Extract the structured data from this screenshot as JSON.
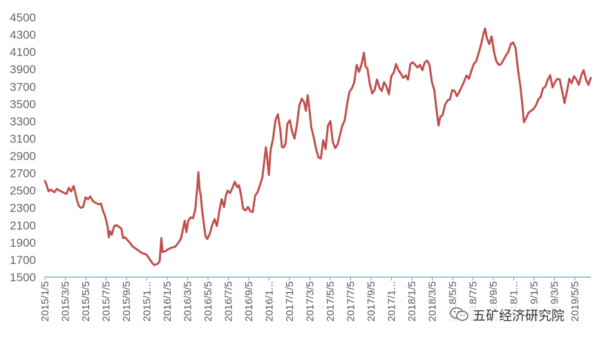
{
  "chart_data": {
    "type": "line",
    "title": "",
    "xlabel": "",
    "ylabel": "",
    "ylim": [
      1500,
      4500
    ],
    "y_ticks": [
      "1500",
      "1700",
      "1900",
      "2100",
      "2300",
      "2500",
      "2700",
      "2900",
      "3100",
      "3300",
      "3500",
      "3700",
      "3900",
      "4100",
      "4300",
      "4500"
    ],
    "x_ticks": [
      "2015/1/5",
      "2015/3/5",
      "2015/5/5",
      "2015/7/5",
      "2015/9/5",
      "2015/1...",
      "2016/1/5",
      "2016/3/5",
      "2016/5/5",
      "2016/7/5",
      "2016/9/5",
      "2016/1...",
      "2017/1/5",
      "2017/3/5",
      "2017/5/5",
      "2017/7/5",
      "2017/9/5",
      "2017/1...",
      "2018/1/5",
      "2018/3/5",
      "2018/5/5",
      "2018/7/5",
      "2018/9/5",
      "2018/1...",
      "2019/1/5",
      "2019/3/5",
      "2019/5/5"
    ],
    "grid": false,
    "legend": "none",
    "colors": {
      "line": "#C0504D",
      "axis": "#4BACC6"
    },
    "series": [
      {
        "x_units": "months since 2015/1/5",
        "points": [
          [
            0.0,
            2610
          ],
          [
            0.15,
            2560
          ],
          [
            0.3,
            2490
          ],
          [
            0.5,
            2510
          ],
          [
            0.8,
            2480
          ],
          [
            1.0,
            2520
          ],
          [
            1.2,
            2500
          ],
          [
            1.5,
            2480
          ],
          [
            1.8,
            2460
          ],
          [
            2.0,
            2530
          ],
          [
            2.2,
            2490
          ],
          [
            2.4,
            2550
          ],
          [
            2.5,
            2500
          ],
          [
            2.7,
            2380
          ],
          [
            2.85,
            2320
          ],
          [
            3.0,
            2300
          ],
          [
            3.2,
            2310
          ],
          [
            3.4,
            2420
          ],
          [
            3.6,
            2400
          ],
          [
            3.8,
            2430
          ],
          [
            4.0,
            2380
          ],
          [
            4.2,
            2360
          ],
          [
            4.5,
            2340
          ],
          [
            4.7,
            2350
          ],
          [
            4.85,
            2270
          ],
          [
            5.0,
            2220
          ],
          [
            5.1,
            2170
          ],
          [
            5.25,
            2080
          ],
          [
            5.35,
            1960
          ],
          [
            5.45,
            2030
          ],
          [
            5.6,
            1990
          ],
          [
            5.8,
            2090
          ],
          [
            6.0,
            2100
          ],
          [
            6.2,
            2080
          ],
          [
            6.4,
            2060
          ],
          [
            6.55,
            1950
          ],
          [
            6.7,
            1960
          ],
          [
            6.9,
            1930
          ],
          [
            7.1,
            1900
          ],
          [
            7.3,
            1860
          ],
          [
            7.5,
            1840
          ],
          [
            7.8,
            1810
          ],
          [
            8.1,
            1780
          ],
          [
            8.5,
            1760
          ],
          [
            8.8,
            1700
          ],
          [
            9.0,
            1660
          ],
          [
            9.15,
            1640
          ],
          [
            9.4,
            1650
          ],
          [
            9.6,
            1680
          ],
          [
            9.75,
            1950
          ],
          [
            9.85,
            1790
          ],
          [
            10.1,
            1800
          ],
          [
            10.3,
            1820
          ],
          [
            10.6,
            1840
          ],
          [
            10.9,
            1850
          ],
          [
            11.2,
            1900
          ],
          [
            11.4,
            1950
          ],
          [
            11.6,
            2080
          ],
          [
            11.7,
            2150
          ],
          [
            11.85,
            2020
          ],
          [
            12.0,
            2150
          ],
          [
            12.2,
            2190
          ],
          [
            12.4,
            2180
          ],
          [
            12.6,
            2290
          ],
          [
            12.75,
            2530
          ],
          [
            12.85,
            2710
          ],
          [
            12.95,
            2510
          ],
          [
            13.05,
            2440
          ],
          [
            13.15,
            2290
          ],
          [
            13.3,
            2120
          ],
          [
            13.45,
            1970
          ],
          [
            13.6,
            1940
          ],
          [
            13.8,
            2000
          ],
          [
            14.0,
            2100
          ],
          [
            14.2,
            2170
          ],
          [
            14.4,
            2090
          ],
          [
            14.6,
            2260
          ],
          [
            14.8,
            2400
          ],
          [
            15.0,
            2310
          ],
          [
            15.15,
            2440
          ],
          [
            15.3,
            2500
          ],
          [
            15.5,
            2470
          ],
          [
            15.7,
            2530
          ],
          [
            15.9,
            2600
          ],
          [
            16.1,
            2540
          ],
          [
            16.25,
            2560
          ],
          [
            16.4,
            2460
          ],
          [
            16.6,
            2290
          ],
          [
            16.8,
            2270
          ],
          [
            17.0,
            2310
          ],
          [
            17.2,
            2260
          ],
          [
            17.4,
            2250
          ],
          [
            17.6,
            2440
          ],
          [
            17.8,
            2480
          ],
          [
            18.0,
            2560
          ],
          [
            18.2,
            2650
          ],
          [
            18.35,
            2820
          ],
          [
            18.5,
            3000
          ],
          [
            18.6,
            2890
          ],
          [
            18.75,
            2680
          ],
          [
            18.9,
            2970
          ],
          [
            19.1,
            3100
          ],
          [
            19.3,
            3310
          ],
          [
            19.5,
            3380
          ],
          [
            19.7,
            3210
          ],
          [
            19.85,
            3000
          ],
          [
            20.0,
            3000
          ],
          [
            20.15,
            3040
          ],
          [
            20.3,
            3270
          ],
          [
            20.5,
            3310
          ],
          [
            20.7,
            3180
          ],
          [
            20.9,
            3100
          ],
          [
            21.1,
            3260
          ],
          [
            21.3,
            3480
          ],
          [
            21.5,
            3560
          ],
          [
            21.7,
            3520
          ],
          [
            21.85,
            3420
          ],
          [
            22.0,
            3600
          ],
          [
            22.15,
            3430
          ],
          [
            22.3,
            3230
          ],
          [
            22.5,
            3120
          ],
          [
            22.7,
            2980
          ],
          [
            22.9,
            2880
          ],
          [
            23.1,
            2870
          ],
          [
            23.3,
            3080
          ],
          [
            23.5,
            2980
          ],
          [
            23.7,
            3250
          ],
          [
            23.9,
            3300
          ],
          [
            24.1,
            3060
          ],
          [
            24.3,
            2990
          ],
          [
            24.5,
            3030
          ],
          [
            24.7,
            3140
          ],
          [
            24.9,
            3250
          ],
          [
            25.1,
            3310
          ],
          [
            25.3,
            3500
          ],
          [
            25.5,
            3640
          ],
          [
            25.7,
            3680
          ],
          [
            25.9,
            3750
          ],
          [
            26.1,
            3950
          ],
          [
            26.3,
            3870
          ],
          [
            26.5,
            3950
          ],
          [
            26.7,
            4090
          ],
          [
            26.85,
            3930
          ],
          [
            27.0,
            3910
          ],
          [
            27.2,
            3730
          ],
          [
            27.4,
            3620
          ],
          [
            27.6,
            3660
          ],
          [
            27.8,
            3780
          ],
          [
            28.0,
            3690
          ],
          [
            28.2,
            3650
          ],
          [
            28.4,
            3750
          ],
          [
            28.6,
            3700
          ],
          [
            28.8,
            3610
          ],
          [
            29.0,
            3820
          ],
          [
            29.2,
            3860
          ],
          [
            29.4,
            3960
          ],
          [
            29.6,
            3890
          ],
          [
            29.8,
            3850
          ],
          [
            30.0,
            3800
          ],
          [
            30.2,
            3830
          ],
          [
            30.4,
            3780
          ],
          [
            30.6,
            3960
          ],
          [
            30.8,
            3980
          ],
          [
            31.0,
            3950
          ],
          [
            31.2,
            3920
          ],
          [
            31.4,
            3950
          ],
          [
            31.6,
            3890
          ],
          [
            31.8,
            3980
          ],
          [
            32.0,
            4000
          ],
          [
            32.2,
            3950
          ],
          [
            32.4,
            3750
          ],
          [
            32.6,
            3660
          ],
          [
            32.8,
            3420
          ],
          [
            32.95,
            3250
          ],
          [
            33.1,
            3350
          ],
          [
            33.3,
            3370
          ],
          [
            33.5,
            3490
          ],
          [
            33.7,
            3540
          ],
          [
            33.9,
            3550
          ],
          [
            34.1,
            3660
          ],
          [
            34.3,
            3650
          ],
          [
            34.5,
            3590
          ],
          [
            34.7,
            3640
          ],
          [
            34.9,
            3700
          ],
          [
            35.1,
            3760
          ],
          [
            35.3,
            3830
          ],
          [
            35.5,
            3790
          ],
          [
            35.7,
            3880
          ],
          [
            35.9,
            3960
          ],
          [
            36.1,
            3990
          ],
          [
            36.3,
            4080
          ],
          [
            36.5,
            4180
          ],
          [
            36.7,
            4300
          ],
          [
            36.85,
            4370
          ],
          [
            37.0,
            4260
          ],
          [
            37.2,
            4190
          ],
          [
            37.4,
            4280
          ],
          [
            37.6,
            4100
          ],
          [
            37.8,
            3990
          ],
          [
            38.0,
            3950
          ],
          [
            38.2,
            3960
          ],
          [
            38.4,
            4010
          ],
          [
            38.6,
            4060
          ],
          [
            38.8,
            4100
          ],
          [
            39.0,
            4190
          ],
          [
            39.2,
            4210
          ],
          [
            39.4,
            4150
          ],
          [
            39.6,
            3900
          ],
          [
            39.8,
            3710
          ],
          [
            39.95,
            3520
          ],
          [
            40.1,
            3290
          ],
          [
            40.3,
            3340
          ],
          [
            40.5,
            3400
          ],
          [
            40.7,
            3420
          ],
          [
            40.9,
            3440
          ],
          [
            41.1,
            3480
          ],
          [
            41.3,
            3550
          ],
          [
            41.5,
            3580
          ],
          [
            41.7,
            3680
          ],
          [
            41.9,
            3700
          ],
          [
            42.1,
            3780
          ],
          [
            42.3,
            3830
          ],
          [
            42.5,
            3690
          ],
          [
            42.7,
            3750
          ],
          [
            42.9,
            3790
          ],
          [
            43.1,
            3780
          ],
          [
            43.3,
            3650
          ],
          [
            43.5,
            3510
          ],
          [
            43.7,
            3640
          ],
          [
            43.9,
            3790
          ],
          [
            44.1,
            3740
          ],
          [
            44.3,
            3820
          ],
          [
            44.5,
            3780
          ],
          [
            44.7,
            3720
          ],
          [
            44.9,
            3830
          ],
          [
            45.1,
            3890
          ],
          [
            45.3,
            3780
          ],
          [
            45.5,
            3720
          ],
          [
            45.7,
            3800
          ]
        ]
      }
    ]
  },
  "watermark": {
    "text": "五矿经济研究院",
    "icon": "wechat-icon"
  }
}
